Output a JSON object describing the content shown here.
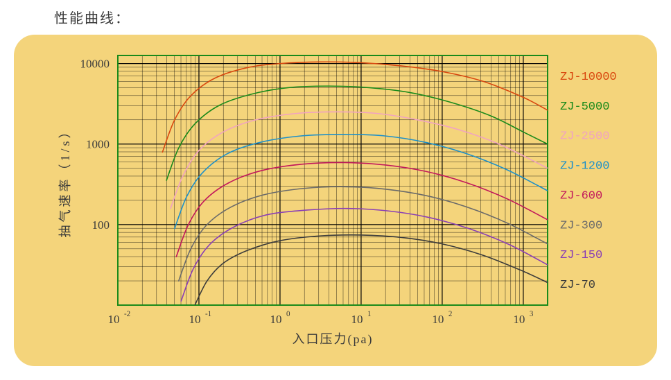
{
  "title": "性能曲线：",
  "chart": {
    "type": "line",
    "card_background": "#f4d47b",
    "plot_background": "#f4d47b",
    "plot_border_color": "#1a8a1a",
    "plot_border_width": 2,
    "grid_color": "#000000",
    "grid_width_minor": 0.4,
    "grid_width_major": 1.2,
    "xlabel": "入口压力(pa)",
    "ylabel": "抽气速率（1/s）",
    "axis_label_fontsize": 18,
    "tick_fontsize": 17,
    "legend_fontsize": 17,
    "x_log_min": -2,
    "x_log_max": 3.3,
    "y_log_min": 1.0,
    "y_log_max": 4.1,
    "x_ticks": [
      {
        "exp": -2,
        "label_mantissa": "10",
        "label_exp": "-2"
      },
      {
        "exp": -1,
        "label_mantissa": "10",
        "label_exp": "-1"
      },
      {
        "exp": 0,
        "label_mantissa": "10",
        "label_exp": "0"
      },
      {
        "exp": 1,
        "label_mantissa": "10",
        "label_exp": "1"
      },
      {
        "exp": 2,
        "label_mantissa": "10",
        "label_exp": "2"
      },
      {
        "exp": 3,
        "label_mantissa": "10",
        "label_exp": "3"
      }
    ],
    "y_ticks": [
      {
        "value": 100,
        "label": "100"
      },
      {
        "value": 1000,
        "label": "1000"
      },
      {
        "value": 10000,
        "label": "10000"
      }
    ],
    "series": [
      {
        "name": "ZJ-10000",
        "color": "#d9480f",
        "width": 1.6,
        "points": [
          [
            -1.45,
            2.9
          ],
          [
            -1.3,
            3.3
          ],
          [
            -1.1,
            3.6
          ],
          [
            -0.8,
            3.82
          ],
          [
            -0.4,
            3.95
          ],
          [
            0.0,
            4.0
          ],
          [
            0.5,
            4.02
          ],
          [
            1.0,
            4.01
          ],
          [
            1.5,
            3.97
          ],
          [
            2.0,
            3.9
          ],
          [
            2.5,
            3.78
          ],
          [
            3.0,
            3.58
          ],
          [
            3.3,
            3.42
          ]
        ]
      },
      {
        "name": "ZJ-5000",
        "color": "#1a8a1a",
        "width": 1.6,
        "points": [
          [
            -1.4,
            2.55
          ],
          [
            -1.25,
            2.95
          ],
          [
            -1.05,
            3.25
          ],
          [
            -0.75,
            3.48
          ],
          [
            -0.35,
            3.62
          ],
          [
            0.1,
            3.7
          ],
          [
            0.6,
            3.72
          ],
          [
            1.1,
            3.7
          ],
          [
            1.6,
            3.64
          ],
          [
            2.1,
            3.52
          ],
          [
            2.6,
            3.35
          ],
          [
            3.0,
            3.15
          ],
          [
            3.3,
            3.0
          ]
        ]
      },
      {
        "name": "ZJ-2500",
        "color": "#f1a3c0",
        "width": 1.6,
        "points": [
          [
            -1.35,
            2.2
          ],
          [
            -1.2,
            2.6
          ],
          [
            -1.0,
            2.92
          ],
          [
            -0.7,
            3.15
          ],
          [
            -0.3,
            3.3
          ],
          [
            0.2,
            3.38
          ],
          [
            0.7,
            3.4
          ],
          [
            1.2,
            3.38
          ],
          [
            1.7,
            3.3
          ],
          [
            2.2,
            3.18
          ],
          [
            2.7,
            3.0
          ],
          [
            3.3,
            2.7
          ]
        ]
      },
      {
        "name": "ZJ-1200",
        "color": "#1e90c8",
        "width": 1.6,
        "points": [
          [
            -1.3,
            1.95
          ],
          [
            -1.15,
            2.35
          ],
          [
            -0.95,
            2.65
          ],
          [
            -0.65,
            2.88
          ],
          [
            -0.25,
            3.02
          ],
          [
            0.25,
            3.1
          ],
          [
            0.8,
            3.12
          ],
          [
            1.3,
            3.1
          ],
          [
            1.8,
            3.02
          ],
          [
            2.3,
            2.88
          ],
          [
            2.8,
            2.68
          ],
          [
            3.3,
            2.42
          ]
        ]
      },
      {
        "name": "ZJ-600",
        "color": "#c2185b",
        "width": 1.6,
        "points": [
          [
            -1.28,
            1.6
          ],
          [
            -1.13,
            2.0
          ],
          [
            -0.93,
            2.3
          ],
          [
            -0.63,
            2.52
          ],
          [
            -0.23,
            2.67
          ],
          [
            0.27,
            2.75
          ],
          [
            0.8,
            2.77
          ],
          [
            1.3,
            2.74
          ],
          [
            1.8,
            2.66
          ],
          [
            2.3,
            2.52
          ],
          [
            2.8,
            2.32
          ],
          [
            3.3,
            2.06
          ]
        ]
      },
      {
        "name": "ZJ-300",
        "color": "#6a6a6a",
        "width": 1.6,
        "points": [
          [
            -1.25,
            1.3
          ],
          [
            -1.1,
            1.7
          ],
          [
            -0.9,
            2.0
          ],
          [
            -0.6,
            2.22
          ],
          [
            -0.2,
            2.37
          ],
          [
            0.3,
            2.45
          ],
          [
            0.8,
            2.47
          ],
          [
            1.3,
            2.44
          ],
          [
            1.8,
            2.36
          ],
          [
            2.3,
            2.22
          ],
          [
            2.8,
            2.02
          ],
          [
            3.3,
            1.76
          ]
        ]
      },
      {
        "name": "ZJ-150",
        "color": "#8a3fb5",
        "width": 1.6,
        "points": [
          [
            -1.22,
            1.05
          ],
          [
            -1.07,
            1.45
          ],
          [
            -0.87,
            1.75
          ],
          [
            -0.57,
            1.97
          ],
          [
            -0.17,
            2.12
          ],
          [
            0.33,
            2.18
          ],
          [
            0.83,
            2.2
          ],
          [
            1.33,
            2.17
          ],
          [
            1.83,
            2.09
          ],
          [
            2.33,
            1.95
          ],
          [
            2.83,
            1.75
          ],
          [
            3.3,
            1.5
          ]
        ]
      },
      {
        "name": "ZJ-70",
        "color": "#3b3b3b",
        "width": 1.6,
        "points": [
          [
            -1.05,
            1.0
          ],
          [
            -0.9,
            1.3
          ],
          [
            -0.7,
            1.52
          ],
          [
            -0.4,
            1.68
          ],
          [
            0.0,
            1.8
          ],
          [
            0.5,
            1.86
          ],
          [
            1.0,
            1.87
          ],
          [
            1.5,
            1.84
          ],
          [
            2.0,
            1.76
          ],
          [
            2.5,
            1.62
          ],
          [
            3.0,
            1.42
          ],
          [
            3.3,
            1.28
          ]
        ]
      }
    ]
  }
}
